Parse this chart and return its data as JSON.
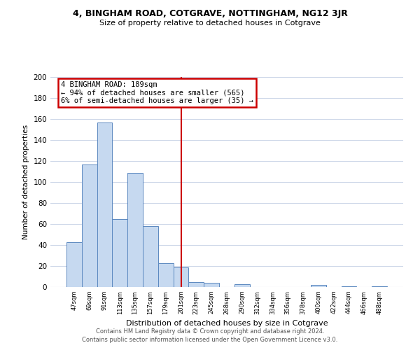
{
  "title": "4, BINGHAM ROAD, COTGRAVE, NOTTINGHAM, NG12 3JR",
  "subtitle": "Size of property relative to detached houses in Cotgrave",
  "xlabel": "Distribution of detached houses by size in Cotgrave",
  "ylabel": "Number of detached properties",
  "bar_labels": [
    "47sqm",
    "69sqm",
    "91sqm",
    "113sqm",
    "135sqm",
    "157sqm",
    "179sqm",
    "201sqm",
    "223sqm",
    "245sqm",
    "268sqm",
    "290sqm",
    "312sqm",
    "334sqm",
    "356sqm",
    "378sqm",
    "400sqm",
    "422sqm",
    "444sqm",
    "466sqm",
    "488sqm"
  ],
  "bar_values": [
    43,
    117,
    157,
    65,
    109,
    58,
    23,
    19,
    5,
    4,
    0,
    3,
    0,
    0,
    0,
    0,
    2,
    0,
    1,
    0,
    1
  ],
  "bar_color": "#c6d9f0",
  "bar_edge_color": "#5b88c0",
  "reference_line_x": 7.0,
  "annotation_title": "4 BINGHAM ROAD: 189sqm",
  "annotation_line1": "← 94% of detached houses are smaller (565)",
  "annotation_line2": "6% of semi-detached houses are larger (35) →",
  "annotation_box_color": "#ffffff",
  "annotation_box_edge": "#cc0000",
  "vline_color": "#cc0000",
  "ylim": [
    0,
    200
  ],
  "yticks": [
    0,
    20,
    40,
    60,
    80,
    100,
    120,
    140,
    160,
    180,
    200
  ],
  "footer_line1": "Contains HM Land Registry data © Crown copyright and database right 2024.",
  "footer_line2": "Contains public sector information licensed under the Open Government Licence v3.0.",
  "background_color": "#ffffff",
  "grid_color": "#ccd6e8"
}
